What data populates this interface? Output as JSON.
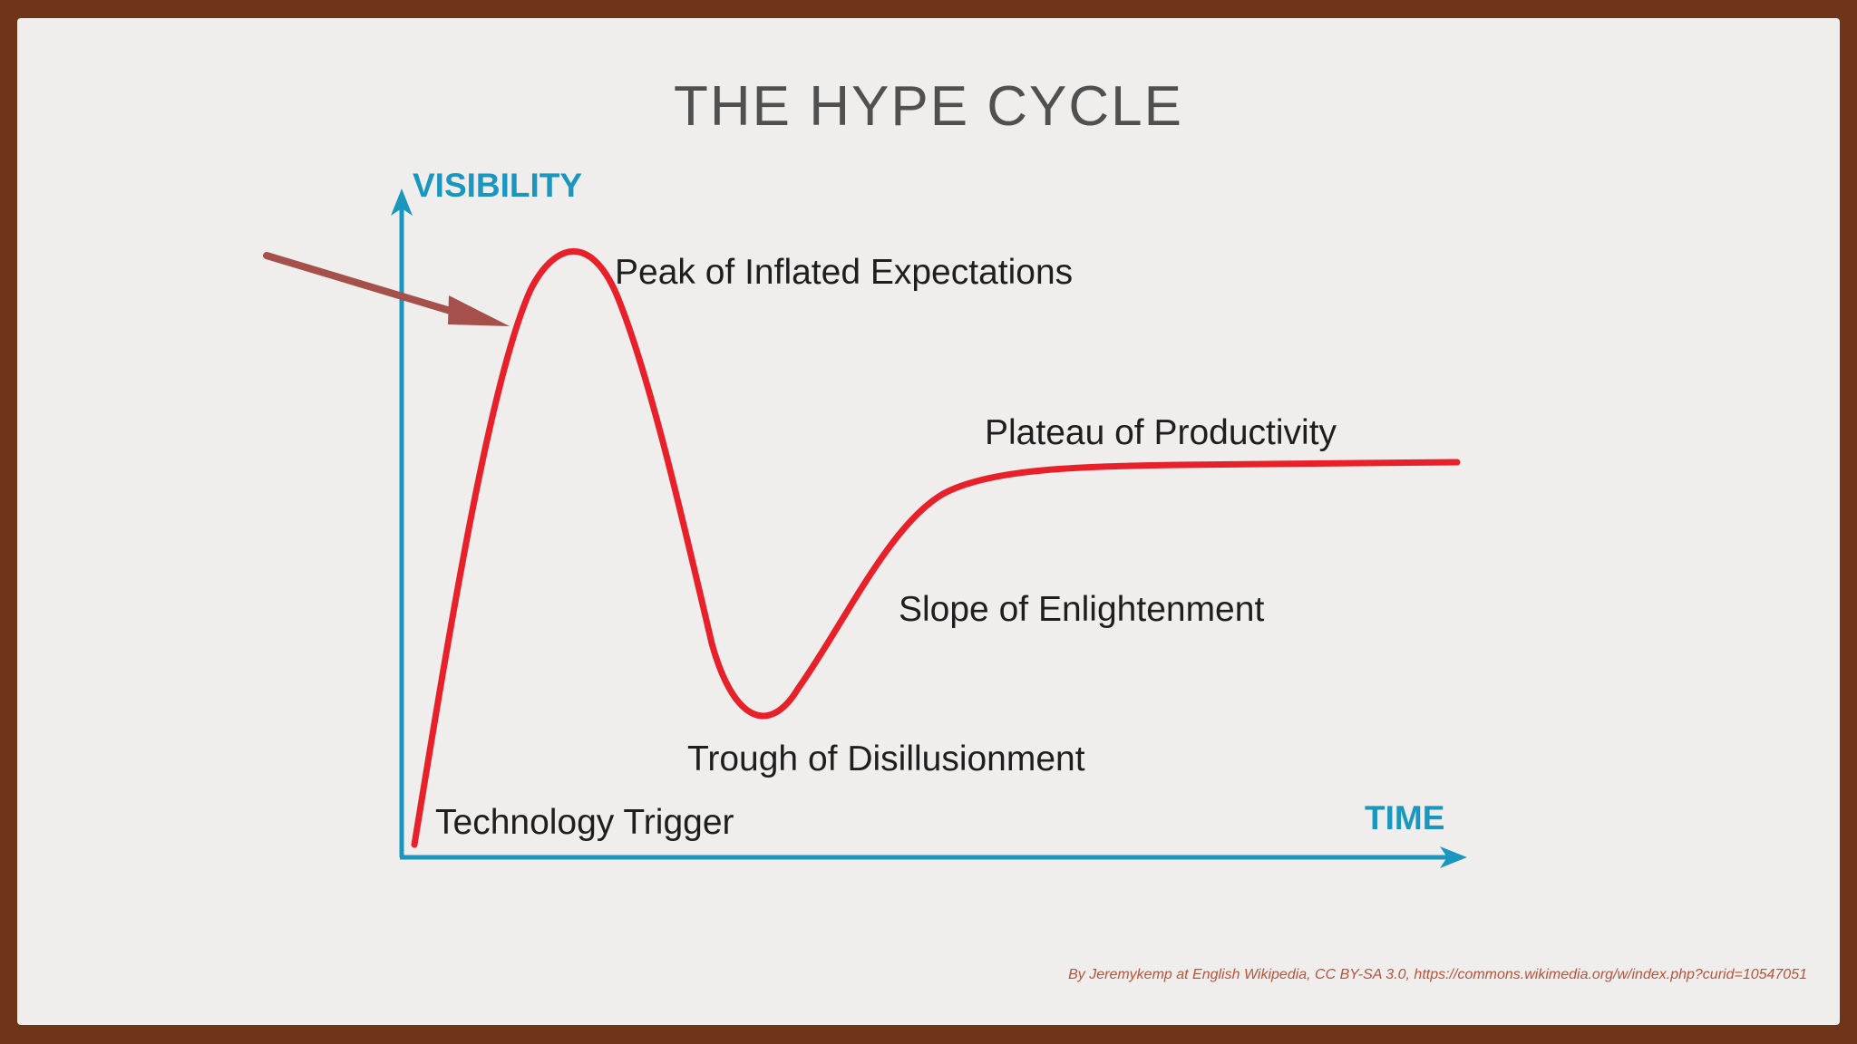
{
  "slide": {
    "title": "THE HYPE CYCLE",
    "credit": "By Jeremykemp at English Wikipedia, CC BY-SA 3.0, https://commons.wikimedia.org/w/index.php?curid=10547051"
  },
  "diagram": {
    "y_axis_label": "VISIBILITY",
    "x_axis_label": "TIME",
    "phases": [
      "Technology Trigger",
      "Peak of Inflated Expectations",
      "Trough of Disillusionment",
      "Slope of Enlightenment",
      "Plateau of Productivity"
    ]
  },
  "colors": {
    "frame": "#6e3519",
    "slide_background": "#efeeec",
    "title": "#505050",
    "axis": "#1b97bf",
    "curve": "#e8202a",
    "pointer_arrow": "#a5504a",
    "phase_label": "#1e1e1e",
    "credit": "#b5543b"
  }
}
